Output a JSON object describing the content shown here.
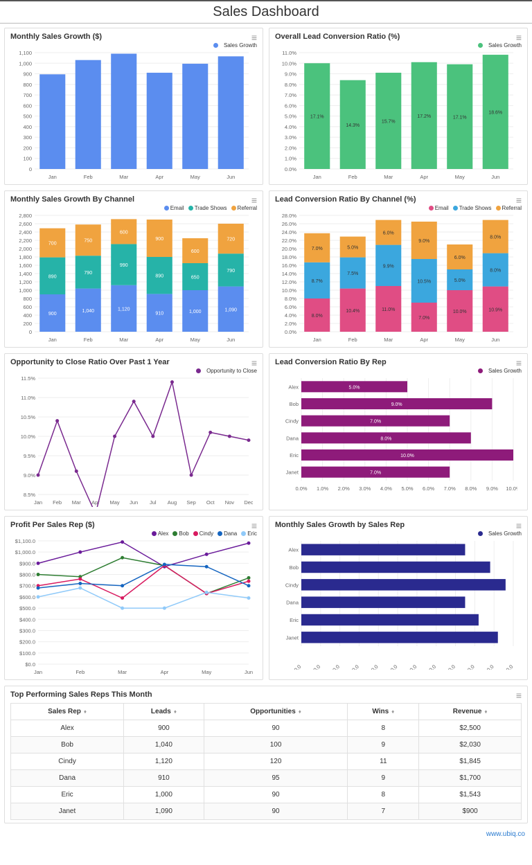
{
  "dashboard_title": "Sales Dashboard",
  "footer": "www.ubiq.co",
  "colors": {
    "blue": "#5b8def",
    "green": "#4bc27d",
    "teal": "#26b3a8",
    "orange": "#f0a33f",
    "pink": "#e04d84",
    "sky": "#3ba7de",
    "purple": "#7a2a8f",
    "navy": "#2a2a8f",
    "alex": "#6a1b9a",
    "bob": "#2e7d32",
    "cindy": "#d81b60",
    "dana": "#1565c0",
    "eric": "#90caf9",
    "grid": "#eeeeee"
  },
  "charts": {
    "monthly_sales": {
      "title": "Monthly Sales Growth ($)",
      "legend": "Sales Growth",
      "categories": [
        "Jan",
        "Feb",
        "Mar",
        "Apr",
        "May",
        "Jun"
      ],
      "values": [
        895,
        1030,
        1090,
        910,
        995,
        1065
      ],
      "ylim": [
        0,
        1100
      ],
      "ytick_step": 100,
      "bar_color": "#5b8def"
    },
    "overall_lead": {
      "title": "Overall Lead Conversion Ratio (%)",
      "legend": "Sales Growth",
      "categories": [
        "Jan",
        "Feb",
        "Mar",
        "Apr",
        "May",
        "Jun"
      ],
      "values": [
        10.0,
        8.4,
        9.1,
        10.1,
        9.9,
        10.8
      ],
      "labels": [
        "17.1%",
        "14.3%",
        "15.7%",
        "17.2%",
        "17.1%",
        "18.6%"
      ],
      "ylim": [
        0,
        11
      ],
      "ytick_step": 1,
      "bar_color": "#4bc27d"
    },
    "sales_by_channel": {
      "title": "Monthly Sales Growth By Channel",
      "series": [
        "Email",
        "Trade Shows",
        "Referral"
      ],
      "colors": [
        "#5b8def",
        "#26b3a8",
        "#f0a33f"
      ],
      "categories": [
        "Jan",
        "Feb",
        "Mar",
        "Apr",
        "May",
        "Jun"
      ],
      "stacks": [
        [
          900,
          890,
          700
        ],
        [
          1040,
          790,
          750
        ],
        [
          1120,
          990,
          600
        ],
        [
          910,
          890,
          900
        ],
        [
          1000,
          650,
          600
        ],
        [
          1090,
          790,
          720
        ]
      ],
      "ylim": [
        0,
        2800
      ],
      "ytick_step": 200
    },
    "lead_by_channel": {
      "title": "Lead Conversion Ratio By Channel (%)",
      "series": [
        "Email",
        "Trade Shows",
        "Referral"
      ],
      "colors": [
        "#e04d84",
        "#3ba7de",
        "#f0a33f"
      ],
      "categories": [
        "Jan",
        "Feb",
        "Mar",
        "Apr",
        "May",
        "Jun"
      ],
      "stacks": [
        [
          8.0,
          8.7,
          7.0
        ],
        [
          10.4,
          7.5,
          5.0
        ],
        [
          11.0,
          9.9,
          6.0
        ],
        [
          7.0,
          10.5,
          9.0
        ],
        [
          10.0,
          5.0,
          6.0
        ],
        [
          10.9,
          8.0,
          8.0
        ]
      ],
      "labels": [
        [
          "8.0%",
          "8.7%",
          "7.0%"
        ],
        [
          "10.4%",
          "7.5%",
          "5.0%"
        ],
        [
          "11.0%",
          "9.9%",
          "6.0%"
        ],
        [
          "7.0%",
          "10.5%",
          "9.0%"
        ],
        [
          "10.0%",
          "5.0%",
          "6.0%"
        ],
        [
          "10.9%",
          "8.0%",
          "8.0%"
        ]
      ],
      "ylim": [
        0,
        28
      ],
      "ytick_step": 2
    },
    "opp_close": {
      "title": "Opportunity to Close Ratio Over Past 1 Year",
      "legend": "Opportunity to Close",
      "categories": [
        "Jan",
        "Feb",
        "Mar",
        "Apr",
        "May",
        "Jun",
        "Jul",
        "Aug",
        "Sep",
        "Oct",
        "Nov",
        "Dec"
      ],
      "values": [
        9.0,
        10.4,
        9.1,
        8.0,
        10.0,
        10.9,
        10.0,
        11.4,
        9.0,
        10.1,
        10.0,
        9.9
      ],
      "ylim": [
        8.5,
        11.5
      ],
      "ytick_step": 0.5,
      "line_color": "#7a2a8f"
    },
    "lead_by_rep": {
      "title": "Lead Conversion Ratio By Rep",
      "legend": "Sales Growth",
      "categories": [
        "Alex",
        "Bob",
        "Cindy",
        "Dana",
        "Eric",
        "Janet"
      ],
      "values": [
        5.0,
        9.0,
        7.0,
        8.0,
        10.0,
        7.0
      ],
      "xlim": [
        0,
        10
      ],
      "xtick_step": 1,
      "bar_color": "#8e1b7a"
    },
    "profit_rep": {
      "title": "Profit Per Sales Rep ($)",
      "series": [
        "Alex",
        "Bob",
        "Cindy",
        "Dana",
        "Eric"
      ],
      "colors": [
        "#6a1b9a",
        "#2e7d32",
        "#d81b60",
        "#1565c0",
        "#90caf9"
      ],
      "categories": [
        "Jan",
        "Feb",
        "Mar",
        "Apr",
        "May",
        "Jun"
      ],
      "data": {
        "Alex": [
          900,
          1000,
          1090,
          870,
          980,
          1080
        ],
        "Bob": [
          800,
          780,
          950,
          880,
          630,
          770
        ],
        "Cindy": [
          700,
          760,
          590,
          880,
          630,
          740
        ],
        "Dana": [
          680,
          720,
          700,
          890,
          870,
          700
        ],
        "Eric": [
          600,
          680,
          500,
          500,
          640,
          590
        ]
      },
      "ylim": [
        0,
        1100
      ],
      "ytick_step": 100
    },
    "sales_by_rep": {
      "title": "Monthly Sales Growth by Sales Rep",
      "legend": "Sales Growth",
      "categories": [
        "Alex",
        "Bob",
        "Cindy",
        "Dana",
        "Eric",
        "Janet"
      ],
      "values": [
        850,
        980,
        1060,
        850,
        920,
        1020
      ],
      "xlim": [
        0,
        1100
      ],
      "xtick_step": 100,
      "bar_color": "#2a2a8f"
    }
  },
  "table": {
    "title": "Top Performing Sales Reps This Month",
    "columns": [
      "Sales Rep",
      "Leads",
      "Opportunities",
      "Wins",
      "Revenue"
    ],
    "rows": [
      [
        "Alex",
        "900",
        "90",
        "8",
        "$2,500"
      ],
      [
        "Bob",
        "1,040",
        "100",
        "9",
        "$2,030"
      ],
      [
        "Cindy",
        "1,120",
        "120",
        "11",
        "$1,845"
      ],
      [
        "Dana",
        "910",
        "95",
        "9",
        "$1,700"
      ],
      [
        "Eric",
        "1,000",
        "90",
        "8",
        "$1,543"
      ],
      [
        "Janet",
        "1,090",
        "90",
        "7",
        "$900"
      ]
    ]
  }
}
